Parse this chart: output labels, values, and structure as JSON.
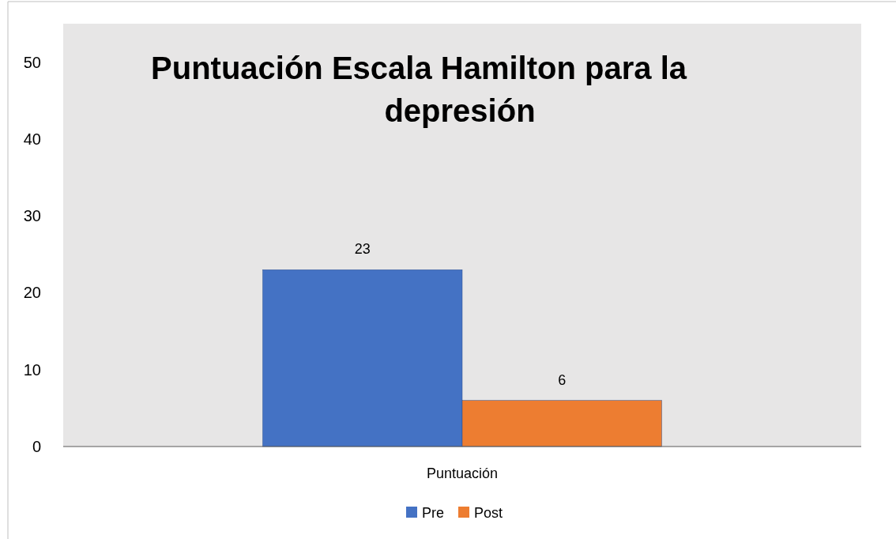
{
  "chart_data": {
    "type": "bar",
    "title": "Puntuación Escala Hamilton para la depresión",
    "categories": [
      "Puntuación"
    ],
    "series": [
      {
        "name": "Pre",
        "color": "#4472c4",
        "values": [
          23
        ]
      },
      {
        "name": "Post",
        "color": "#ed7d31",
        "values": [
          6
        ]
      }
    ],
    "ylim": [
      0,
      55
    ],
    "yticks": [
      0,
      10,
      20,
      30,
      40,
      50
    ],
    "grid": false,
    "legend": "bottom",
    "data_labels": true
  }
}
